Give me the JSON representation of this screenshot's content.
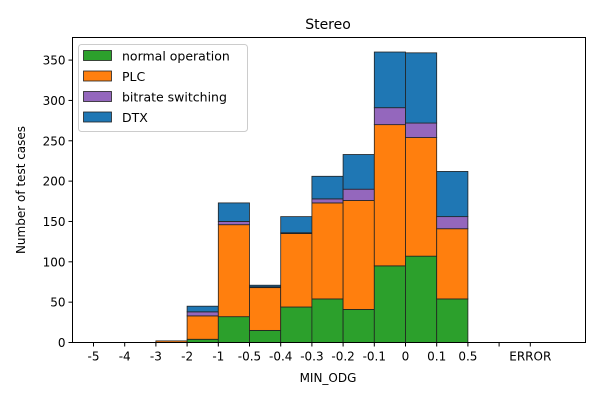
{
  "chart_data": {
    "type": "bar",
    "stacked": true,
    "title": "Stereo",
    "xlabel": "MIN_ODG",
    "ylabel": "Number of test cases",
    "x_tick_labels": [
      "-5",
      "-4",
      "-3",
      "-2",
      "-1",
      "-0.5",
      "-0.4",
      "-0.3",
      "-0.2",
      "-0.1",
      "0",
      "0.1",
      "0.5",
      "",
      "ERROR"
    ],
    "bins": [
      {
        "from": "-3",
        "to": "-2"
      },
      {
        "from": "-2",
        "to": "-1"
      },
      {
        "from": "-1",
        "to": "-0.5"
      },
      {
        "from": "-0.5",
        "to": "-0.4"
      },
      {
        "from": "-0.4",
        "to": "-0.3"
      },
      {
        "from": "-0.3",
        "to": "-0.2"
      },
      {
        "from": "-0.2",
        "to": "-0.1"
      },
      {
        "from": "-0.1",
        "to": "0"
      },
      {
        "from": "0",
        "to": "0.1"
      },
      {
        "from": "0.1",
        "to": "0.5"
      }
    ],
    "series": [
      {
        "name": "normal operation",
        "color": "#2ca02c",
        "values": [
          0,
          4,
          32,
          15,
          44,
          54,
          41,
          95,
          107,
          54
        ]
      },
      {
        "name": "PLC",
        "color": "#ff7f0e",
        "values": [
          2,
          29,
          114,
          53,
          91,
          119,
          135,
          175,
          147,
          87
        ]
      },
      {
        "name": "bitrate switching",
        "color": "#9467bd",
        "values": [
          0,
          5,
          4,
          1,
          1,
          5,
          14,
          21,
          18,
          15
        ]
      },
      {
        "name": "DTX",
        "color": "#1f77b4",
        "values": [
          0,
          7,
          23,
          2,
          20,
          28,
          43,
          69,
          87,
          56
        ]
      }
    ],
    "y_ticks": [
      0,
      50,
      100,
      150,
      200,
      250,
      300,
      350
    ],
    "ylim": [
      0,
      378
    ],
    "grid": false,
    "legend_position": "top-left"
  }
}
